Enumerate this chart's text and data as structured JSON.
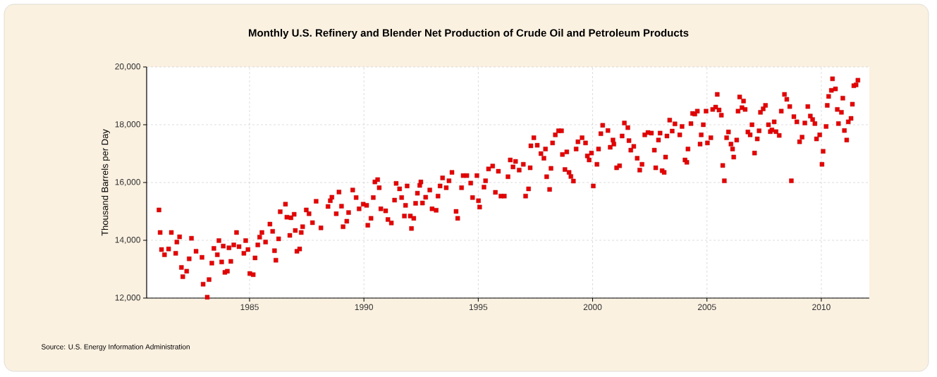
{
  "chart_data": {
    "type": "scatter",
    "title": "Monthly U.S. Refinery and Blender Net Production of Crude Oil and Petroleum Products",
    "ylabel": "Thousand Barrels per Day",
    "annotations": [
      "Source: U.S. Energy Information Administration"
    ],
    "color": "#e60000",
    "marker": "square",
    "grid": true,
    "xlim": [
      1980.5,
      2012.1
    ],
    "xticks": [
      1985,
      1990,
      1995,
      2000,
      2005,
      2010
    ],
    "ylim": [
      12000,
      20000
    ],
    "yticks": [
      {
        "value": 12000,
        "label": "12,000"
      },
      {
        "value": 14000,
        "label": "14,000"
      },
      {
        "value": 16000,
        "label": "16,000"
      },
      {
        "value": 18000,
        "label": "18,000"
      },
      {
        "value": 20000,
        "label": "20,000"
      }
    ],
    "x": [
      1981.04,
      1981.09,
      1981.15,
      1981.28,
      1981.46,
      1981.58,
      1981.77,
      1981.82,
      1981.94,
      1982.02,
      1982.08,
      1982.25,
      1982.36,
      1982.46,
      1982.66,
      1982.92,
      1982.97,
      1983.15,
      1983.23,
      1983.35,
      1983.44,
      1983.59,
      1983.66,
      1983.78,
      1983.85,
      1983.92,
      1984.03,
      1984.1,
      1984.18,
      1984.31,
      1984.43,
      1984.54,
      1984.75,
      1984.83,
      1984.93,
      1985.01,
      1985.16,
      1985.24,
      1985.36,
      1985.44,
      1985.54,
      1985.7,
      1985.89,
      1986.01,
      1986.09,
      1986.15,
      1986.27,
      1986.34,
      1986.57,
      1986.63,
      1986.76,
      1986.81,
      1986.95,
      1987.0,
      1987.07,
      1987.19,
      1987.26,
      1987.32,
      1987.48,
      1987.6,
      1987.75,
      1987.91,
      1988.12,
      1988.43,
      1988.53,
      1988.6,
      1988.79,
      1988.91,
      1989.02,
      1989.09,
      1989.25,
      1989.33,
      1989.51,
      1989.66,
      1989.79,
      1989.97,
      1990.12,
      1990.17,
      1990.31,
      1990.41,
      1990.48,
      1990.6,
      1990.67,
      1990.74,
      1990.95,
      1991.05,
      1991.2,
      1991.34,
      1991.41,
      1991.56,
      1991.65,
      1991.77,
      1991.82,
      1991.89,
      1992.03,
      1992.08,
      1992.18,
      1992.26,
      1992.34,
      1992.44,
      1992.49,
      1992.56,
      1992.7,
      1992.88,
      1992.98,
      1993.16,
      1993.24,
      1993.33,
      1993.44,
      1993.6,
      1993.72,
      1993.85,
      1994.03,
      1994.1,
      1994.27,
      1994.34,
      1994.5,
      1994.67,
      1994.75,
      1994.94,
      1995.01,
      1995.06,
      1995.25,
      1995.32,
      1995.45,
      1995.63,
      1995.75,
      1995.88,
      1995.99,
      1996.14,
      1996.3,
      1996.4,
      1996.52,
      1996.63,
      1996.79,
      1996.97,
      1997.07,
      1997.2,
      1997.27,
      1997.3,
      1997.43,
      1997.58,
      1997.74,
      1997.87,
      1997.94,
      1997.99,
      1998.12,
      1998.18,
      1998.25,
      1998.37,
      1998.51,
      1998.64,
      1998.68,
      1998.79,
      1998.87,
      1998.97,
      1999.05,
      1999.16,
      1999.28,
      1999.36,
      1999.54,
      1999.69,
      1999.77,
      1999.85,
      1999.95,
      2000.03,
      2000.19,
      2000.26,
      2000.36,
      2000.44,
      2000.67,
      2000.77,
      2000.89,
      2000.93,
      2001.05,
      2001.18,
      2001.29,
      2001.39,
      2001.54,
      2001.59,
      2001.67,
      2001.8,
      2001.95,
      2002.06,
      2002.16,
      2002.28,
      2002.42,
      2002.57,
      2002.7,
      2002.76,
      2002.88,
      2002.95,
      2003.04,
      2003.13,
      2003.19,
      2003.25,
      2003.37,
      2003.48,
      2003.6,
      2003.81,
      2003.91,
      2004.04,
      2004.12,
      2004.17,
      2004.3,
      2004.37,
      2004.47,
      2004.58,
      2004.7,
      2004.75,
      2004.84,
      2004.96,
      2005.02,
      2005.17,
      2005.25,
      2005.38,
      2005.45,
      2005.53,
      2005.63,
      2005.69,
      2005.76,
      2005.86,
      2005.94,
      2006.05,
      2006.12,
      2006.17,
      2006.3,
      2006.36,
      2006.43,
      2006.53,
      2006.6,
      2006.67,
      2006.79,
      2006.89,
      2006.97,
      2007.08,
      2007.2,
      2007.28,
      2007.34,
      2007.46,
      2007.56,
      2007.69,
      2007.77,
      2007.84,
      2007.94,
      2008.02,
      2008.16,
      2008.25,
      2008.39,
      2008.49,
      2008.62,
      2008.69,
      2008.8,
      2008.93,
      2009.05,
      2009.16,
      2009.28,
      2009.41,
      2009.52,
      2009.62,
      2009.72,
      2009.79,
      2009.93,
      2010.03,
      2010.08,
      2010.21,
      2010.26,
      2010.32,
      2010.44,
      2010.49,
      2010.62,
      2010.7,
      2010.75,
      2010.88,
      2010.94,
      2011.01,
      2011.11,
      2011.18,
      2011.3,
      2011.36,
      2011.42,
      2011.52,
      2011.6
    ],
    "values": [
      15050,
      14270,
      13680,
      13500,
      13700,
      14270,
      13550,
      13940,
      14120,
      13060,
      12740,
      12930,
      13360,
      14070,
      13620,
      13410,
      12480,
      12030,
      12640,
      13210,
      13720,
      13500,
      13990,
      13250,
      13800,
      12890,
      12930,
      13740,
      13270,
      13840,
      14270,
      13780,
      13550,
      13990,
      13680,
      12850,
      12810,
      13390,
      13840,
      14110,
      14270,
      13940,
      14560,
      14310,
      13640,
      13310,
      14050,
      14990,
      15250,
      14800,
      14170,
      14780,
      14900,
      14340,
      13620,
      13700,
      14270,
      14470,
      15050,
      14920,
      14610,
      15350,
      14430,
      15170,
      15370,
      15490,
      14920,
      15670,
      15180,
      14470,
      14660,
      14960,
      15740,
      15480,
      15090,
      15250,
      15210,
      14520,
      14760,
      15480,
      16020,
      16100,
      15820,
      15090,
      15020,
      14720,
      14600,
      15390,
      15970,
      15780,
      15480,
      14840,
      15210,
      15880,
      14840,
      14410,
      14760,
      15280,
      15630,
      15900,
      16020,
      15290,
      15490,
      15740,
      15090,
      15040,
      15530,
      15880,
      16160,
      15820,
      16060,
      16350,
      15000,
      14760,
      15820,
      16240,
      16240,
      15980,
      15480,
      16240,
      15370,
      15150,
      15840,
      16060,
      16470,
      16570,
      15660,
      16390,
      15530,
      15530,
      16200,
      16780,
      16540,
      16730,
      16430,
      16630,
      15530,
      15780,
      16510,
      17270,
      17550,
      17290,
      17000,
      16840,
      17160,
      16200,
      15760,
      16490,
      17370,
      17650,
      17790,
      17790,
      16970,
      16450,
      17060,
      16350,
      16210,
      16050,
      17160,
      17410,
      17550,
      17370,
      16920,
      16780,
      17020,
      15880,
      16630,
      17160,
      17690,
      17980,
      17800,
      17220,
      17470,
      17330,
      16510,
      16580,
      17610,
      18060,
      17900,
      17450,
      17120,
      17250,
      16840,
      16430,
      16630,
      17650,
      17730,
      17710,
      17120,
      16510,
      17470,
      17710,
      16410,
      16350,
      16880,
      17610,
      18160,
      17780,
      18030,
      17650,
      17940,
      16780,
      16700,
      17160,
      18040,
      18390,
      18370,
      18470,
      17330,
      17650,
      18000,
      18470,
      17370,
      17550,
      18530,
      18610,
      19050,
      18510,
      18330,
      16590,
      16060,
      17550,
      17750,
      17330,
      17160,
      16880,
      17470,
      18470,
      18960,
      18590,
      18820,
      18530,
      17750,
      17650,
      18000,
      17020,
      17510,
      17790,
      18430,
      18550,
      18670,
      18000,
      17760,
      17820,
      18100,
      17760,
      17630,
      18470,
      19050,
      18880,
      18630,
      16060,
      18280,
      18100,
      17410,
      17570,
      18060,
      18630,
      18300,
      18180,
      18040,
      17510,
      17650,
      16630,
      17080,
      17940,
      18670,
      18980,
      19190,
      19590,
      19240,
      18530,
      18040,
      18430,
      18920,
      17800,
      17470,
      18100,
      18220,
      18710,
      19350,
      19380,
      19540
    ]
  }
}
